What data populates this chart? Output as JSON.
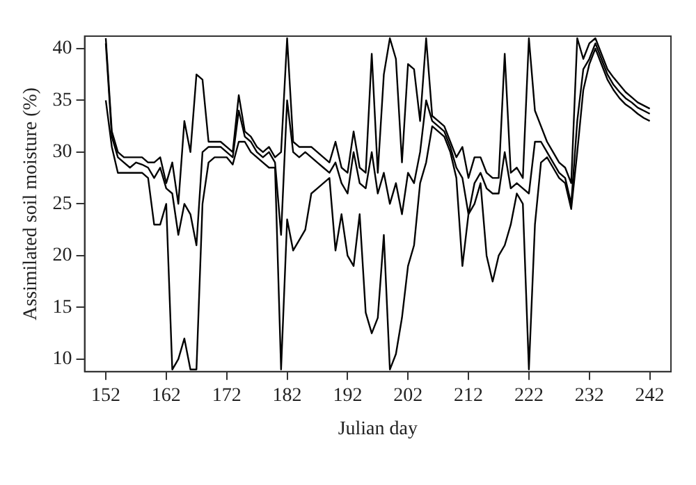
{
  "chart_data": {
    "type": "line",
    "xlabel": "Julian day",
    "ylabel": "Assimilated soil moisture (%)",
    "x": [
      152,
      153,
      154,
      155,
      156,
      157,
      158,
      159,
      160,
      161,
      162,
      163,
      164,
      165,
      166,
      167,
      168,
      169,
      170,
      171,
      172,
      173,
      174,
      175,
      176,
      177,
      178,
      179,
      180,
      181,
      182,
      183,
      184,
      185,
      186,
      187,
      188,
      189,
      190,
      191,
      192,
      193,
      194,
      195,
      196,
      197,
      198,
      199,
      200,
      201,
      202,
      203,
      204,
      205,
      206,
      207,
      208,
      209,
      210,
      211,
      212,
      213,
      214,
      215,
      216,
      217,
      218,
      219,
      220,
      221,
      222,
      223,
      224,
      225,
      226,
      227,
      228,
      229,
      230,
      231,
      232,
      233,
      234,
      235,
      236,
      237,
      238,
      239,
      240,
      241,
      242
    ],
    "xlim": [
      148.5,
      245.5
    ],
    "xticks": [
      152,
      162,
      172,
      182,
      192,
      202,
      212,
      222,
      232,
      242
    ],
    "ylim": [
      8.8,
      41.2
    ],
    "yticks": [
      10,
      15,
      20,
      25,
      30,
      35,
      40
    ],
    "grid": false,
    "marker": "none",
    "line_style": "solid",
    "series": [
      {
        "color": "#000000",
        "values": [
          41,
          32,
          30,
          29.5,
          29.5,
          29.5,
          29.5,
          29,
          29,
          29.5,
          27,
          29,
          25,
          33,
          30,
          37.5,
          37,
          31,
          31,
          31,
          30.5,
          30,
          35.5,
          32,
          31.5,
          30.5,
          30,
          30.5,
          29.5,
          30,
          41,
          31,
          30.5,
          30.5,
          30.5,
          30,
          29.5,
          29,
          31,
          28.5,
          28,
          32,
          28.5,
          28,
          39.5,
          28,
          37.5,
          41,
          39,
          29,
          38.5,
          38,
          33,
          41,
          33.5,
          33,
          32.5,
          31,
          29.5,
          30.5,
          27.5,
          29.5,
          29.5,
          28,
          27.5,
          27.5,
          39.5,
          28,
          28.5,
          27.5,
          41,
          34,
          32.5,
          31,
          30,
          29,
          28.5,
          27,
          41,
          39,
          40.5,
          41,
          39.5,
          38,
          37.2,
          36.5,
          35.8,
          35.3,
          34.8,
          34.5,
          34.2
        ]
      },
      {
        "color": "#000000",
        "values": [
          40.5,
          31.5,
          29.5,
          29,
          28.5,
          29,
          28.8,
          28.5,
          27.5,
          28.5,
          26.5,
          26,
          22,
          25,
          24,
          21,
          30,
          30.5,
          30.5,
          30.5,
          30,
          29.5,
          34,
          31.5,
          31,
          30,
          29.5,
          30,
          29,
          22,
          35,
          30,
          29.5,
          30,
          29.5,
          29,
          28.5,
          28,
          29,
          27,
          26,
          30,
          27,
          26.5,
          30,
          26,
          28,
          25,
          27,
          24,
          28,
          27,
          30,
          35,
          33,
          32.5,
          32,
          30.5,
          28.5,
          27.5,
          24,
          27,
          28,
          26.5,
          26,
          26,
          30,
          26.5,
          27,
          26.5,
          26,
          31,
          31,
          30,
          29,
          28,
          27.5,
          25,
          33,
          38,
          39,
          40.5,
          39,
          37.5,
          36.5,
          35.8,
          35.2,
          34.8,
          34.3,
          34,
          33.7
        ]
      },
      {
        "color": "#000000",
        "values": [
          35,
          30.5,
          28,
          28,
          28,
          28,
          28,
          27.5,
          23,
          23,
          25,
          9,
          10,
          12,
          9,
          9,
          25,
          29,
          29.5,
          29.5,
          29.5,
          28.8,
          31,
          31,
          30,
          29.5,
          29,
          28.5,
          28.5,
          9,
          23.5,
          20.5,
          21.5,
          22.5,
          26,
          26.5,
          27,
          27.5,
          20.5,
          24,
          20,
          19,
          24,
          14.5,
          12.5,
          14,
          22,
          9,
          10.5,
          14,
          19,
          21,
          27,
          29,
          32.5,
          32,
          31.5,
          30,
          27.5,
          19,
          24,
          25,
          27,
          20,
          17.5,
          20,
          21,
          23,
          26,
          25,
          9,
          23,
          29,
          29.5,
          28.5,
          27.5,
          27,
          24.5,
          30,
          36,
          38.5,
          40,
          38.5,
          37,
          36,
          35.2,
          34.6,
          34.2,
          33.7,
          33.3,
          33
        ]
      }
    ]
  }
}
